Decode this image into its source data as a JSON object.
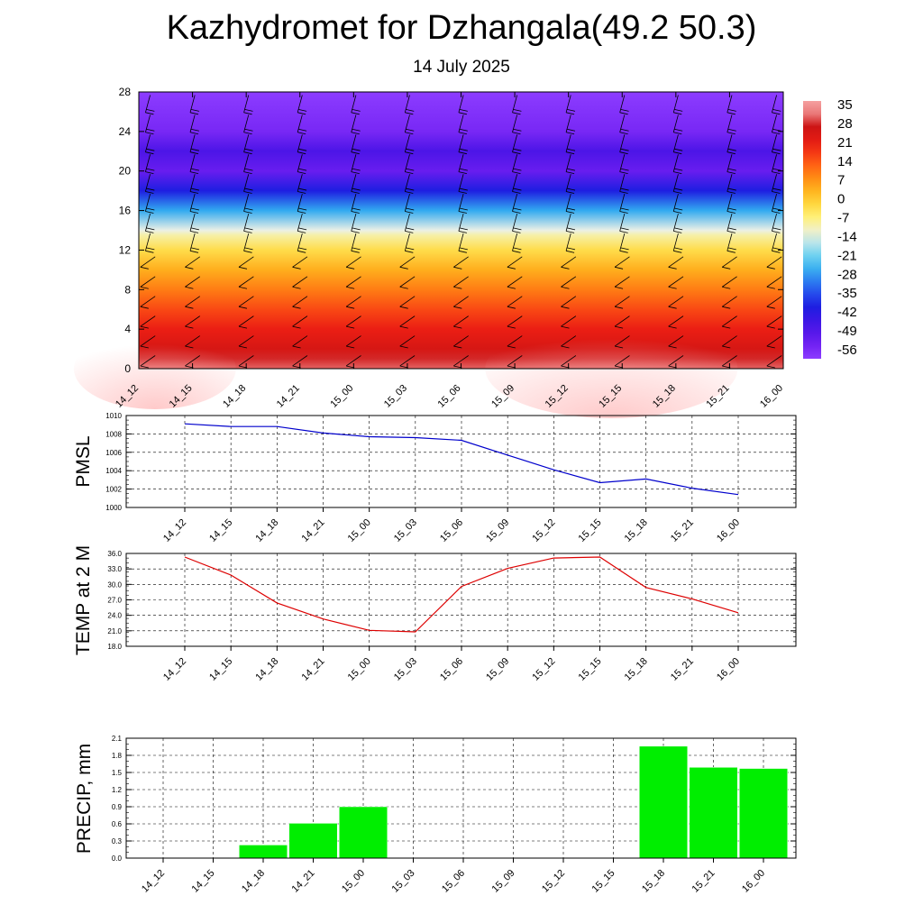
{
  "title": "Kazhydromet for Dzhangala(49.2 50.3)",
  "subtitle": "14 July 2025",
  "colors": {
    "pmsl_line": "#0000cc",
    "temp_line": "#dd0000",
    "precip_bar": "#00ee00",
    "grid": "#000000"
  },
  "chart_data": [
    {
      "type": "heatmap",
      "name": "vertical-profile",
      "title": "",
      "xlabel": "",
      "ylabel": "",
      "x": [
        "14_12",
        "14_15",
        "14_18",
        "14_21",
        "15_00",
        "15_03",
        "15_06",
        "15_09",
        "15_12",
        "15_15",
        "15_18",
        "15_21",
        "16_00"
      ],
      "yticks": [
        0,
        4,
        8,
        12,
        16,
        20,
        24,
        28
      ],
      "ylim": [
        0,
        28
      ],
      "colorbar_labels": [
        "35",
        "28",
        "21",
        "14",
        "7",
        "0",
        "-7",
        "-14",
        "-21",
        "-28",
        "-35",
        "-42",
        "-49",
        "-56"
      ],
      "profile": [
        {
          "h": 0,
          "v": 32
        },
        {
          "h": 1,
          "v": 29
        },
        {
          "h": 2,
          "v": 26
        },
        {
          "h": 4,
          "v": 21
        },
        {
          "h": 6,
          "v": 16
        },
        {
          "h": 8,
          "v": 10
        },
        {
          "h": 10,
          "v": 4
        },
        {
          "h": 12,
          "v": -3
        },
        {
          "h": 13.5,
          "v": -10
        },
        {
          "h": 14,
          "v": -14
        },
        {
          "h": 16,
          "v": -28
        },
        {
          "h": 18,
          "v": -42
        },
        {
          "h": 20,
          "v": -55
        },
        {
          "h": 22,
          "v": -50
        },
        {
          "h": 24,
          "v": -58
        },
        {
          "h": 26,
          "v": -60
        },
        {
          "h": 28,
          "v": -62
        }
      ],
      "wind_barbs": true
    },
    {
      "type": "line",
      "name": "pmsl",
      "ylabel": "PMSL",
      "x": [
        "14_12",
        "14_15",
        "14_18",
        "14_21",
        "15_00",
        "15_03",
        "15_06",
        "15_09",
        "15_12",
        "15_15",
        "15_18",
        "15_21",
        "16_00"
      ],
      "yticks": [
        "1000",
        "1002",
        "1004",
        "1006",
        "1008",
        "1010"
      ],
      "ylim": [
        1000,
        1010
      ],
      "series": [
        {
          "values": [
            1009.1,
            1008.8,
            1008.8,
            1008.1,
            1007.7,
            1007.6,
            1007.3,
            1005.7,
            1004.1,
            1002.7,
            1003.1,
            1002.1,
            1001.4
          ]
        }
      ]
    },
    {
      "type": "line",
      "name": "temp-2m",
      "ylabel": "TEMP at 2 M",
      "x": [
        "14_12",
        "14_15",
        "14_18",
        "14_21",
        "15_00",
        "15_03",
        "15_06",
        "15_09",
        "15_12",
        "15_15",
        "15_18",
        "15_21",
        "16_00"
      ],
      "yticks": [
        "18.0",
        "21.0",
        "24.0",
        "27.0",
        "30.0",
        "33.0",
        "36.0"
      ],
      "ylim": [
        18,
        36
      ],
      "series": [
        {
          "values": [
            35.3,
            31.8,
            26.4,
            23.3,
            21.1,
            20.8,
            29.6,
            33.1,
            35.1,
            35.3,
            29.4,
            27.2,
            24.5
          ]
        }
      ]
    },
    {
      "type": "bar",
      "name": "precip",
      "ylabel": "PRECIP, mm",
      "categories": [
        "14_12",
        "14_15",
        "14_18",
        "14_21",
        "15_00",
        "15_03",
        "15_06",
        "15_09",
        "15_12",
        "15_15",
        "15_18",
        "15_21",
        "16_00"
      ],
      "yticks": [
        "0.0",
        "0.3",
        "0.6",
        "0.9",
        "1.2",
        "1.5",
        "1.8",
        "2.1"
      ],
      "ylim": [
        0,
        2.1
      ],
      "values": [
        0,
        0,
        0.23,
        0.61,
        0.9,
        0,
        0,
        0,
        0,
        0,
        1.96,
        1.59,
        1.57
      ]
    }
  ]
}
